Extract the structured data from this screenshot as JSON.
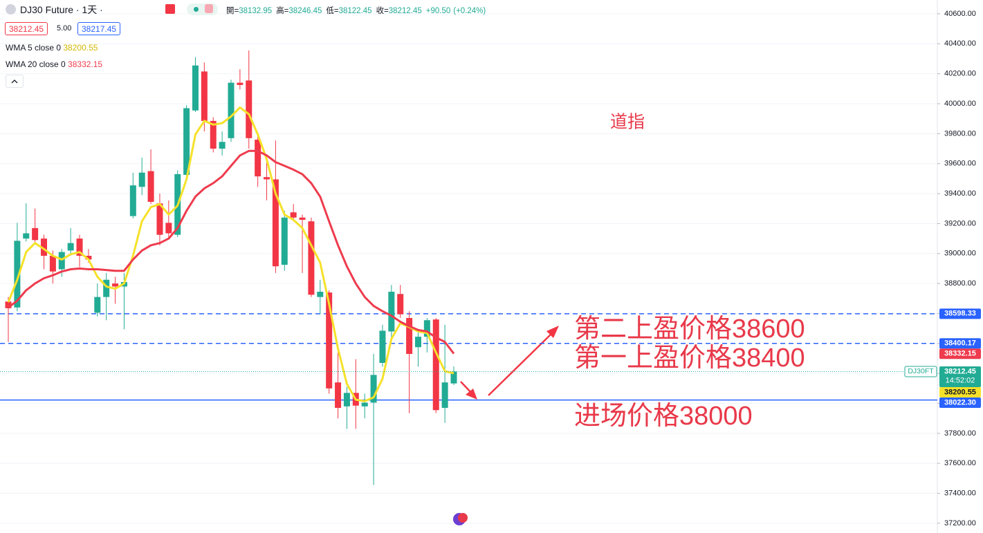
{
  "chart_data": {
    "type": "candlestick",
    "title": "DJ30 Future · 1天 ·",
    "ohlc_labels": [
      "開=",
      "高=",
      "低=",
      "收="
    ],
    "change": {
      "value": 90.5,
      "label": "+90.50"
    },
    "change_pct": {
      "value": 0.24,
      "label": "(+0.24%)"
    },
    "quote": {
      "spread": {
        "value": 5,
        "label": "5.00"
      },
      "ask": 38217.45
    },
    "symbol_tag": "DJ30FT",
    "countdown": "14:52:02",
    "up_color": "#22ab94",
    "down_color": "#f23645",
    "open": [
      38680,
      38640,
      39100,
      39170,
      39100,
      38985,
      38895,
      39020,
      39100,
      38985,
      38605,
      38710,
      38800,
      38780,
      39250,
      39445,
      39550,
      39335,
      39205,
      39125,
      39525,
      39955,
      40215,
      39885,
      39700,
      39770,
      40140,
      40155,
      39760,
      39510,
      39495,
      38925,
      39275,
      39240,
      39215,
      38710,
      38740,
      38140,
      37980,
      38070,
      37980,
      38005,
      38270,
      38480,
      38730,
      38570,
      38375,
      38445,
      38560,
      37970,
      38132.95
    ],
    "high": [
      38710,
      39205,
      39335,
      39300,
      39125,
      39020,
      39030,
      39170,
      39125,
      39030,
      38800,
      38870,
      38845,
      38870,
      39540,
      39640,
      39695,
      39400,
      39355,
      39555,
      39990,
      40310,
      40275,
      39910,
      39815,
      40160,
      40230,
      40355,
      39795,
      39630,
      39755,
      39285,
      39330,
      39260,
      39240,
      38825,
      38755,
      38340,
      38110,
      38295,
      38065,
      38330,
      38525,
      38790,
      38790,
      38615,
      38480,
      38570,
      38570,
      38525,
      38246.45
    ],
    "low": [
      38410,
      38615,
      39080,
      39070,
      38895,
      38800,
      38845,
      38985,
      38910,
      38940,
      38580,
      38555,
      38665,
      38495,
      39235,
      39390,
      39330,
      39055,
      39100,
      39110,
      39500,
      39945,
      39815,
      39675,
      39655,
      39745,
      40095,
      39700,
      39445,
      39355,
      38870,
      38885,
      39215,
      38870,
      38710,
      38595,
      38065,
      37900,
      37830,
      37830,
      37900,
      37455,
      38245,
      38430,
      38570,
      37935,
      38245,
      38340,
      37935,
      37870,
      38122.45
    ],
    "close": [
      38635,
      39085,
      39135,
      39090,
      38985,
      38880,
      39010,
      39070,
      38985,
      38960,
      38710,
      38825,
      38780,
      38810,
      39455,
      39540,
      39345,
      39125,
      39135,
      39530,
      39970,
      40255,
      39885,
      39700,
      39745,
      40140,
      40125,
      39770,
      39515,
      39495,
      38915,
      39240,
      39240,
      39225,
      38725,
      38745,
      38100,
      37970,
      38070,
      37985,
      38005,
      38190,
      38485,
      38745,
      38595,
      38330,
      38445,
      38555,
      37955,
      38140,
      38212.45
    ],
    "series": [
      {
        "name": "WMA 5 close 0",
        "color": "#f5e12a",
        "values": [
          38675,
          38825,
          39010,
          39070,
          39030,
          38985,
          38960,
          38995,
          39010,
          38960,
          38845,
          38780,
          38765,
          38800,
          38985,
          39215,
          39310,
          39330,
          39260,
          39320,
          39495,
          39795,
          39885,
          39860,
          39870,
          39915,
          39975,
          39930,
          39795,
          39630,
          39400,
          39260,
          39225,
          39170,
          39055,
          38940,
          38665,
          38365,
          38130,
          38025,
          38015,
          38040,
          38165,
          38430,
          38535,
          38510,
          38480,
          38470,
          38340,
          38215,
          38200.55
        ]
      },
      {
        "name": "WMA 20 close 0",
        "color": "#ee3b4d",
        "values": [
          38640,
          38685,
          38755,
          38800,
          38835,
          38855,
          38880,
          38895,
          38900,
          38895,
          38895,
          38890,
          38885,
          38885,
          38960,
          39020,
          39055,
          39070,
          39100,
          39170,
          39285,
          39380,
          39435,
          39470,
          39515,
          39585,
          39655,
          39685,
          39685,
          39655,
          39610,
          39585,
          39560,
          39530,
          39470,
          39380,
          39215,
          39055,
          38915,
          38800,
          38710,
          38650,
          38615,
          38585,
          38545,
          38515,
          38490,
          38480,
          38440,
          38410,
          38332.15
        ]
      }
    ],
    "price_lines": [
      {
        "value": 38598.33,
        "style": "dashed",
        "color": "#2962ff"
      },
      {
        "value": 38400.17,
        "style": "dashed",
        "color": "#2962ff"
      },
      {
        "value": 38022.3,
        "label": "38022.30",
        "style": "solid",
        "color": "#2962ff"
      }
    ],
    "annotations": [
      "道指",
      "第二上盈价格38600",
      "第一上盈价格38400",
      "进场价格38000"
    ],
    "ylim": [
      37135,
      40692
    ],
    "yticks": [
      {
        "value": 40600,
        "label": "40600.00"
      },
      {
        "value": 40400,
        "label": "40400.00"
      },
      {
        "value": 40200,
        "label": "40200.00"
      },
      {
        "value": 40000,
        "label": "40000.00"
      },
      {
        "value": 39800,
        "label": "39800.00"
      },
      {
        "value": 39600,
        "label": "39600.00"
      },
      {
        "value": 39400,
        "label": "39400.00"
      },
      {
        "value": 39200,
        "label": "39200.00"
      },
      {
        "value": 39000,
        "label": "39000.00"
      },
      {
        "value": 38800,
        "label": "38800.00"
      },
      {
        "value": 38600,
        "label": "38600.00"
      },
      {
        "value": 38400,
        "label": "38400.00"
      },
      {
        "value": 38200,
        "label": "38200.00"
      },
      {
        "value": 38000,
        "label": "38000.00"
      },
      {
        "value": 37800,
        "label": "37800.00"
      },
      {
        "value": 37600,
        "label": "37600.00"
      },
      {
        "value": 37400,
        "label": "37400.00"
      },
      {
        "value": 37200,
        "label": "37200.00"
      }
    ],
    "grid": true
  }
}
